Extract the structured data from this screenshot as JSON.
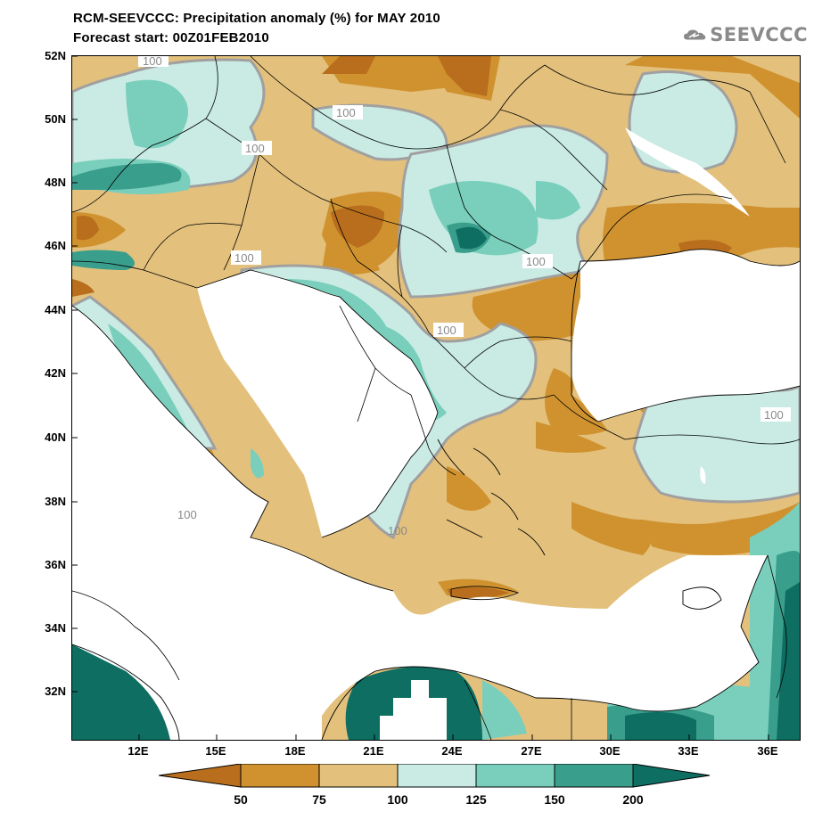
{
  "title": {
    "line1": "RCM-SEEVCCC: Precipitation anomaly (%) for MAY 2010",
    "line2": "Forecast start: 00Z01FEB2010"
  },
  "logo": {
    "text": "SEEVCCC",
    "icon": "cloud-icon"
  },
  "axes": {
    "lat_labels": [
      "52N",
      "50N",
      "48N",
      "46N",
      "44N",
      "42N",
      "40N",
      "38N",
      "36N",
      "34N",
      "32N"
    ],
    "lon_labels": [
      "12E",
      "15E",
      "18E",
      "21E",
      "24E",
      "27E",
      "30E",
      "33E",
      "36E"
    ]
  },
  "contour_labels": [
    "100",
    "100",
    "100",
    "100",
    "100",
    "100",
    "100",
    "100",
    "100"
  ],
  "legend": {
    "labels": [
      "50",
      "75",
      "100",
      "125",
      "150",
      "200"
    ],
    "colors": [
      "#b86e1c",
      "#cf922f",
      "#e3c07c",
      "#c9ebe4",
      "#79cfbc",
      "#3a9e8c",
      "#0e6e62"
    ]
  },
  "colors": {
    "dark_brown": "#b86e1c",
    "mid_brown": "#cf922f",
    "tan": "#e3c07c",
    "light_teal": "#c9ebe4",
    "mid_teal": "#79cfbc",
    "teal": "#3a9e8c",
    "dark_teal": "#0e6e62",
    "contour_grey": "#a0a0a0"
  }
}
